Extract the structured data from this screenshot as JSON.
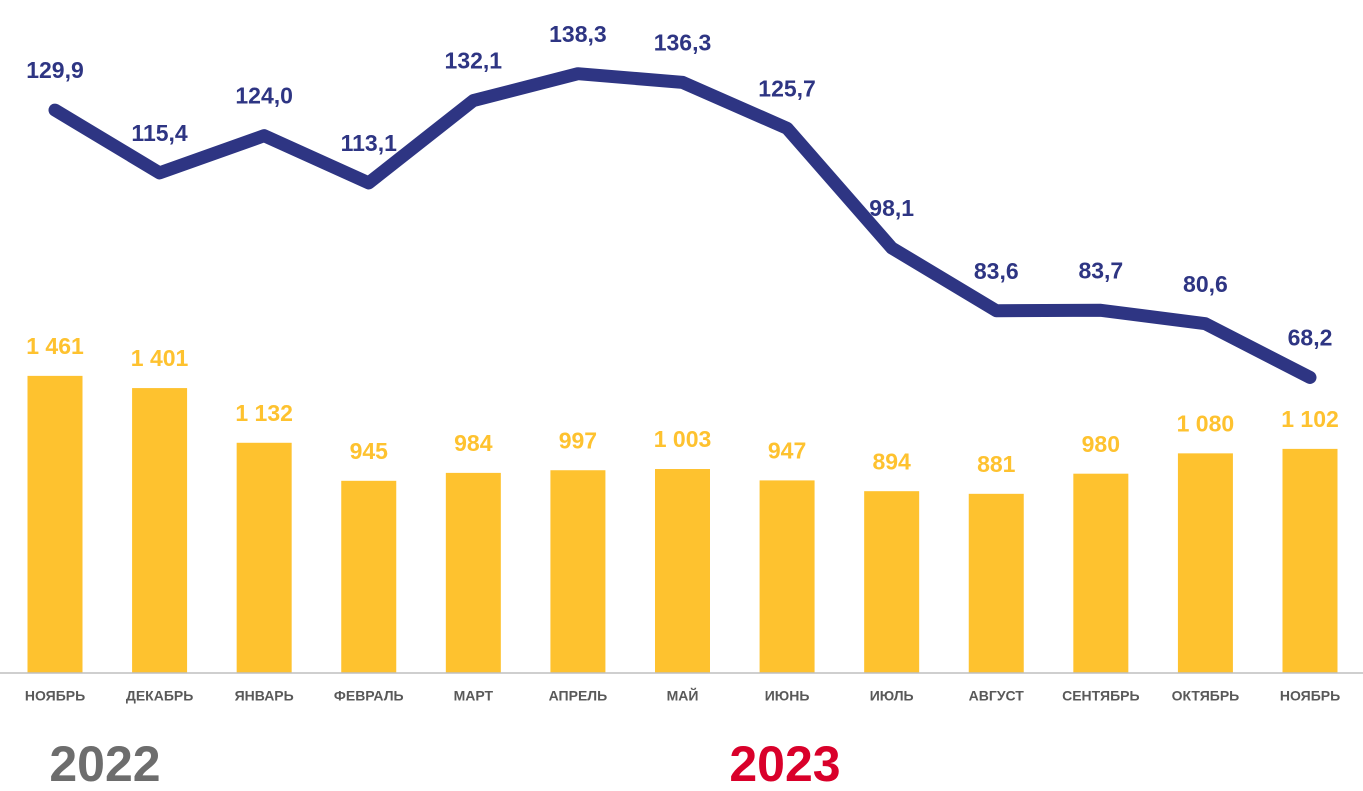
{
  "chart_data": {
    "type": "bar",
    "categories": [
      "НОЯБРЬ",
      "ДЕКАБРЬ",
      "ЯНВАРЬ",
      "ФЕВРАЛЬ",
      "МАРТ",
      "АПРЕЛЬ",
      "МАЙ",
      "ИЮНЬ",
      "ИЮЛЬ",
      "АВГУСТ",
      "СЕНТЯБРЬ",
      "ОКТЯБРЬ",
      "НОЯБРЬ"
    ],
    "series": [
      {
        "type": "bar",
        "color": "#fec22f",
        "values": [
          1461,
          1401,
          1132,
          945,
          984,
          997,
          1003,
          947,
          894,
          881,
          980,
          1080,
          1102
        ],
        "value_labels": [
          "1 461",
          "1 401",
          "1 132",
          "945",
          "984",
          "997",
          "1 003",
          "947",
          "894",
          "881",
          "980",
          "1 080",
          "1 102"
        ]
      },
      {
        "type": "line",
        "axis": "y2",
        "color": "#2e3583",
        "values": [
          129.9,
          115.4,
          124.0,
          113.1,
          132.1,
          138.3,
          136.3,
          125.7,
          98.1,
          83.6,
          83.7,
          80.6,
          68.2
        ],
        "value_labels": [
          "129,9",
          "115,4",
          "124,0",
          "113,1",
          "132,1",
          "138,3",
          "136,3",
          "125,7",
          "98,1",
          "83,6",
          "83,7",
          "80,6",
          "68,2"
        ]
      }
    ],
    "ylim": [
      0,
      3260
    ],
    "y2lim": [
      0,
      153
    ],
    "annotations": [
      {
        "text": "2022",
        "color": "#6d6d6d"
      },
      {
        "text": "2023",
        "color": "#d9002a"
      }
    ]
  }
}
